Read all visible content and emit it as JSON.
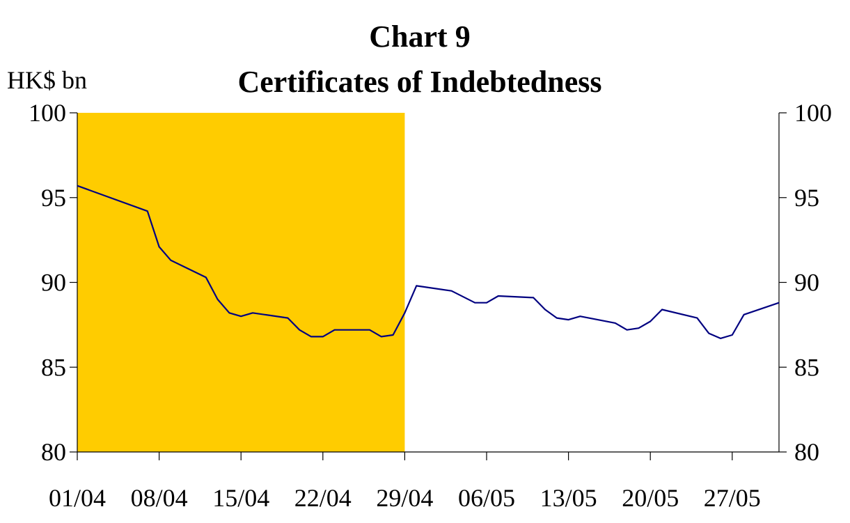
{
  "chart_data": {
    "type": "line",
    "title": "Chart 9",
    "subtitle": "Certificates of Indebtedness",
    "ylabel": "HK$ bn",
    "ylim": [
      80,
      100
    ],
    "y_ticks": [
      "80",
      "85",
      "90",
      "95",
      "100"
    ],
    "right_y_ticks": [
      "80",
      "85",
      "90",
      "95",
      "100"
    ],
    "x_ticks": [
      "01/04",
      "08/04",
      "15/04",
      "22/04",
      "29/04",
      "06/05",
      "13/05",
      "20/05",
      "27/05"
    ],
    "day_range": [
      0,
      60
    ],
    "shaded_region": {
      "from_day": 0,
      "to_day": 28,
      "color": "#FFCC00"
    },
    "series": [
      {
        "name": "Certificates of Indebtedness",
        "color": "#000080",
        "points": [
          [
            0,
            95.7
          ],
          [
            6,
            94.2
          ],
          [
            7,
            92.1
          ],
          [
            8,
            91.3
          ],
          [
            11,
            90.3
          ],
          [
            12,
            89.0
          ],
          [
            13,
            88.2
          ],
          [
            14,
            88.0
          ],
          [
            15,
            88.2
          ],
          [
            18,
            87.9
          ],
          [
            19,
            87.2
          ],
          [
            20,
            86.8
          ],
          [
            21,
            86.8
          ],
          [
            22,
            87.2
          ],
          [
            23,
            87.2
          ],
          [
            25,
            87.2
          ],
          [
            26,
            86.8
          ],
          [
            27,
            86.9
          ],
          [
            28,
            88.2
          ],
          [
            29,
            89.8
          ],
          [
            32,
            89.5
          ],
          [
            34,
            88.8
          ],
          [
            35,
            88.8
          ],
          [
            36,
            89.2
          ],
          [
            39,
            89.1
          ],
          [
            40,
            88.4
          ],
          [
            41,
            87.9
          ],
          [
            42,
            87.8
          ],
          [
            43,
            88.0
          ],
          [
            46,
            87.6
          ],
          [
            47,
            87.2
          ],
          [
            48,
            87.3
          ],
          [
            49,
            87.7
          ],
          [
            50,
            88.4
          ],
          [
            53,
            87.9
          ],
          [
            54,
            87.0
          ],
          [
            55,
            86.7
          ],
          [
            56,
            86.9
          ],
          [
            57,
            88.1
          ],
          [
            60,
            88.8
          ]
        ]
      }
    ]
  }
}
